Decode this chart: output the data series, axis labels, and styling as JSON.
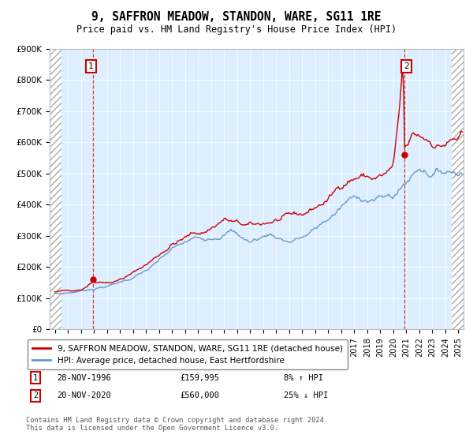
{
  "title": "9, SAFFRON MEADOW, STANDON, WARE, SG11 1RE",
  "subtitle": "Price paid vs. HM Land Registry's House Price Index (HPI)",
  "legend_line1": "9, SAFFRON MEADOW, STANDON, WARE, SG11 1RE (detached house)",
  "legend_line2": "HPI: Average price, detached house, East Hertfordshire",
  "annotation1_date": "28-NOV-1996",
  "annotation1_price": "£159,995",
  "annotation1_hpi": "8% ↑ HPI",
  "annotation2_date": "20-NOV-2020",
  "annotation2_price": "£560,000",
  "annotation2_hpi": "25% ↓ HPI",
  "footnote": "Contains HM Land Registry data © Crown copyright and database right 2024.\nThis data is licensed under the Open Government Licence v3.0.",
  "red_color": "#cc0000",
  "blue_color": "#6699cc",
  "background_plot": "#ddeeff",
  "ylim_max": 900000,
  "yticks": [
    0,
    100000,
    200000,
    300000,
    400000,
    500000,
    600000,
    700000,
    800000,
    900000
  ],
  "ytick_labels": [
    "£0",
    "£100K",
    "£200K",
    "£300K",
    "£400K",
    "£500K",
    "£600K",
    "£700K",
    "£800K",
    "£900K"
  ],
  "sale1_x": 1996.92,
  "sale1_y": 159995,
  "sale2_x": 2020.88,
  "sale2_y": 560000,
  "xmin": 1993.6,
  "xmax": 2025.4,
  "hatch_left_end": 1994.5,
  "hatch_right_start": 2024.5
}
